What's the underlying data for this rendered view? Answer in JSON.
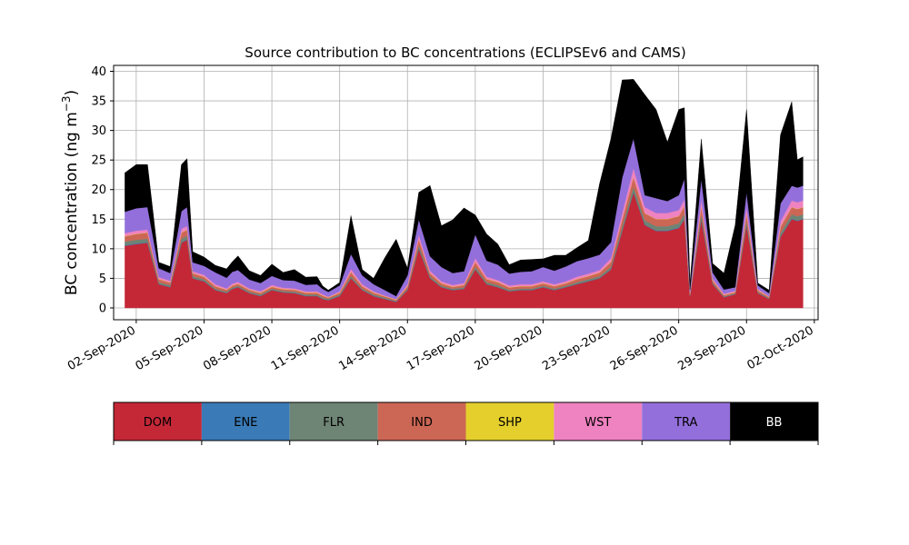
{
  "chart_data": {
    "type": "area",
    "stacked": true,
    "title": "Source contribution to BC concentrations (ECLIPSEv6 and CAMS)",
    "ylabel": "BC concentration (ng m",
    "ylabel_exponent": "−3",
    "ylabel_close": ")",
    "ylim": [
      -2,
      41
    ],
    "xlim": [
      "2020-09-01T00:00",
      "2020-10-02T04:00"
    ],
    "grid": true,
    "yticks": [
      0,
      5,
      10,
      15,
      20,
      25,
      30,
      35,
      40
    ],
    "xticks": [
      "02-Sep-2020",
      "05-Sep-2020",
      "08-Sep-2020",
      "11-Sep-2020",
      "14-Sep-2020",
      "17-Sep-2020",
      "20-Sep-2020",
      "23-Sep-2020",
      "26-Sep-2020",
      "29-Sep-2020",
      "02-Oct-2020"
    ],
    "x": [
      "2020-09-01T12:00",
      "2020-09-02T00:00",
      "2020-09-02T12:00",
      "2020-09-03T00:00",
      "2020-09-03T12:00",
      "2020-09-04T00:00",
      "2020-09-04T06:00",
      "2020-09-04T12:00",
      "2020-09-05T00:00",
      "2020-09-05T12:00",
      "2020-09-06T00:00",
      "2020-09-06T06:00",
      "2020-09-06T12:00",
      "2020-09-07T00:00",
      "2020-09-07T12:00",
      "2020-09-08T00:00",
      "2020-09-08T12:00",
      "2020-09-09T00:00",
      "2020-09-09T12:00",
      "2020-09-10T00:00",
      "2020-09-10T06:00",
      "2020-09-10T12:00",
      "2020-09-11T00:00",
      "2020-09-11T12:00",
      "2020-09-12T00:00",
      "2020-09-12T12:00",
      "2020-09-13T00:00",
      "2020-09-13T12:00",
      "2020-09-14T00:00",
      "2020-09-14T12:00",
      "2020-09-15T00:00",
      "2020-09-15T12:00",
      "2020-09-16T00:00",
      "2020-09-16T12:00",
      "2020-09-17T00:00",
      "2020-09-17T12:00",
      "2020-09-18T00:00",
      "2020-09-18T12:00",
      "2020-09-19T00:00",
      "2020-09-19T12:00",
      "2020-09-20T00:00",
      "2020-09-20T12:00",
      "2020-09-21T00:00",
      "2020-09-21T12:00",
      "2020-09-22T00:00",
      "2020-09-22T12:00",
      "2020-09-23T00:00",
      "2020-09-23T12:00",
      "2020-09-24T00:00",
      "2020-09-24T12:00",
      "2020-09-25T00:00",
      "2020-09-25T12:00",
      "2020-09-26T00:00",
      "2020-09-26T06:00",
      "2020-09-26T12:00",
      "2020-09-27T00:00",
      "2020-09-27T12:00",
      "2020-09-28T00:00",
      "2020-09-28T12:00",
      "2020-09-29T00:00",
      "2020-09-29T12:00",
      "2020-09-30T00:00",
      "2020-09-30T12:00",
      "2020-10-01T00:00",
      "2020-10-01T06:00",
      "2020-10-01T12:00"
    ],
    "series": [
      {
        "name": "DOM",
        "color": "#c42837",
        "values": [
          10.5,
          10.8,
          11,
          4,
          3.5,
          11,
          11.5,
          5,
          4.5,
          3,
          2.5,
          3.2,
          3.5,
          2.5,
          2,
          3,
          2.6,
          2.5,
          2,
          2,
          1.5,
          1.3,
          2,
          5,
          3,
          2,
          1.5,
          1,
          3,
          10,
          5,
          3.5,
          3,
          3.2,
          6.5,
          4,
          3.5,
          2.8,
          3,
          3,
          3.5,
          3,
          3.5,
          4,
          4.5,
          5,
          6.5,
          13,
          19.5,
          14,
          13,
          13,
          13.5,
          15,
          2,
          15,
          4,
          1.8,
          2.3,
          14,
          2.5,
          1.5,
          12,
          15,
          14.7,
          15
        ]
      },
      {
        "name": "ENE",
        "color": "#3a7ab6",
        "values": [
          0.1,
          0.1,
          0.1,
          0.05,
          0.05,
          0.1,
          0.1,
          0.05,
          0.05,
          0.05,
          0.05,
          0.05,
          0.05,
          0.05,
          0.05,
          0.05,
          0.05,
          0.05,
          0.05,
          0.05,
          0.05,
          0.05,
          0.05,
          0.05,
          0.05,
          0.05,
          0.05,
          0.05,
          0.05,
          0.1,
          0.05,
          0.05,
          0.05,
          0.05,
          0.05,
          0.05,
          0.05,
          0.05,
          0.05,
          0.05,
          0.05,
          0.05,
          0.05,
          0.05,
          0.05,
          0.05,
          0.05,
          0.1,
          0.1,
          0.1,
          0.1,
          0.1,
          0.1,
          0.1,
          0.05,
          0.1,
          0.05,
          0.05,
          0.05,
          0.1,
          0.05,
          0.05,
          0.1,
          0.1,
          0.1,
          0.1
        ]
      },
      {
        "name": "FLR",
        "color": "#6e8474",
        "values": [
          0.6,
          0.6,
          0.6,
          0.3,
          0.3,
          0.6,
          0.6,
          0.3,
          0.3,
          0.2,
          0.2,
          0.2,
          0.2,
          0.2,
          0.2,
          0.2,
          0.2,
          0.2,
          0.2,
          0.2,
          0.2,
          0.2,
          0.2,
          0.3,
          0.2,
          0.2,
          0.2,
          0.1,
          0.2,
          0.5,
          0.3,
          0.2,
          0.2,
          0.2,
          0.4,
          0.3,
          0.3,
          0.2,
          0.2,
          0.2,
          0.2,
          0.2,
          0.2,
          0.3,
          0.3,
          0.3,
          0.4,
          0.7,
          0.9,
          0.7,
          0.7,
          0.7,
          0.7,
          0.8,
          0.1,
          0.8,
          0.2,
          0.1,
          0.1,
          0.7,
          0.1,
          0.1,
          0.6,
          0.7,
          0.7,
          0.7
        ]
      },
      {
        "name": "IND",
        "color": "#cc6655",
        "values": [
          0.9,
          1,
          1,
          0.5,
          0.4,
          1,
          1,
          0.5,
          0.4,
          0.4,
          0.3,
          0.3,
          0.3,
          0.3,
          0.3,
          0.3,
          0.3,
          0.3,
          0.3,
          0.3,
          0.3,
          0.2,
          0.3,
          0.7,
          0.4,
          0.3,
          0.2,
          0.2,
          0.4,
          1,
          0.5,
          0.4,
          0.3,
          0.4,
          0.8,
          0.5,
          0.5,
          0.4,
          0.4,
          0.4,
          0.4,
          0.4,
          0.4,
          0.5,
          0.5,
          0.6,
          0.8,
          1.2,
          1.6,
          1.2,
          1.2,
          1.2,
          1.2,
          1.3,
          0.2,
          1.3,
          0.4,
          0.2,
          0.2,
          1.2,
          0.3,
          0.2,
          1,
          1.2,
          1.2,
          1.2
        ]
      },
      {
        "name": "SHP",
        "color": "#e4cf2d",
        "values": [
          0.05,
          0.05,
          0.05,
          0.05,
          0.05,
          0.05,
          0.05,
          0.05,
          0.05,
          0.05,
          0.05,
          0.05,
          0.05,
          0.05,
          0.05,
          0.05,
          0.05,
          0.05,
          0.05,
          0.05,
          0.05,
          0.05,
          0.05,
          0.05,
          0.05,
          0.05,
          0.05,
          0.05,
          0.05,
          0.05,
          0.05,
          0.05,
          0.05,
          0.05,
          0.05,
          0.05,
          0.05,
          0.05,
          0.05,
          0.05,
          0.05,
          0.05,
          0.05,
          0.05,
          0.05,
          0.05,
          0.05,
          0.05,
          0.05,
          0.05,
          0.05,
          0.05,
          0.05,
          0.05,
          0.05,
          0.05,
          0.05,
          0.05,
          0.05,
          0.05,
          0.05,
          0.05,
          0.05,
          0.05,
          0.05,
          0.05
        ]
      },
      {
        "name": "WST",
        "color": "#ef82c0",
        "values": [
          0.5,
          0.5,
          0.5,
          0.3,
          0.3,
          0.6,
          0.6,
          0.3,
          0.3,
          0.3,
          0.2,
          0.3,
          0.3,
          0.2,
          0.2,
          0.3,
          0.2,
          0.2,
          0.2,
          0.2,
          0.2,
          0.1,
          0.2,
          0.5,
          0.3,
          0.2,
          0.1,
          0.1,
          0.3,
          0.7,
          0.4,
          0.3,
          0.3,
          0.3,
          0.6,
          0.4,
          0.3,
          0.3,
          0.3,
          0.3,
          0.3,
          0.3,
          0.3,
          0.4,
          0.4,
          0.4,
          0.6,
          1,
          1.5,
          1,
          1,
          1,
          1,
          1.1,
          0.2,
          1.1,
          0.3,
          0.2,
          0.2,
          1,
          0.2,
          0.1,
          0.9,
          1.1,
          1.1,
          1.1
        ]
      },
      {
        "name": "TRA",
        "color": "#936fdb",
        "values": [
          3.6,
          3.8,
          3.8,
          1.5,
          1.3,
          3,
          3.2,
          1.5,
          1.5,
          2,
          1.8,
          2,
          2,
          1.5,
          1.4,
          1.5,
          1.3,
          1.3,
          1.1,
          1.2,
          0.9,
          0.8,
          1,
          2.5,
          1.5,
          1.2,
          0.9,
          0.5,
          1.5,
          2.6,
          2.4,
          2.4,
          2,
          2,
          4,
          2.7,
          2.6,
          2,
          2.1,
          2.2,
          2.4,
          2.3,
          2.5,
          2.6,
          2.6,
          2.6,
          2.7,
          6,
          5,
          2,
          2.5,
          2,
          2.5,
          3.5,
          0.5,
          3.5,
          1,
          0.7,
          0.6,
          2.5,
          0.6,
          0.5,
          3,
          2.5,
          2.5,
          2.5
        ]
      },
      {
        "name": "BB",
        "color": "#000000",
        "values": [
          6.6,
          7.4,
          7.2,
          1,
          1.1,
          7.9,
          8.2,
          1.8,
          1.5,
          1.2,
          1.5,
          1.7,
          2.4,
          1.5,
          1.3,
          2,
          1.3,
          1.9,
          1.3,
          1.3,
          0.5,
          0.3,
          0.5,
          6.5,
          1,
          1,
          5.5,
          9.6,
          1.2,
          4.6,
          12,
          7,
          9,
          10.7,
          3.3,
          4.5,
          3.5,
          1.5,
          2,
          2,
          1.4,
          2.6,
          1.9,
          2.3,
          3,
          12,
          17.5,
          16.5,
          10,
          17,
          15,
          10,
          14.5,
          12,
          1.1,
          6.7,
          1.5,
          2.8,
          10.5,
          14,
          0.4,
          0.5,
          11.6,
          14.2,
          4.7,
          4.9
        ]
      }
    ]
  }
}
